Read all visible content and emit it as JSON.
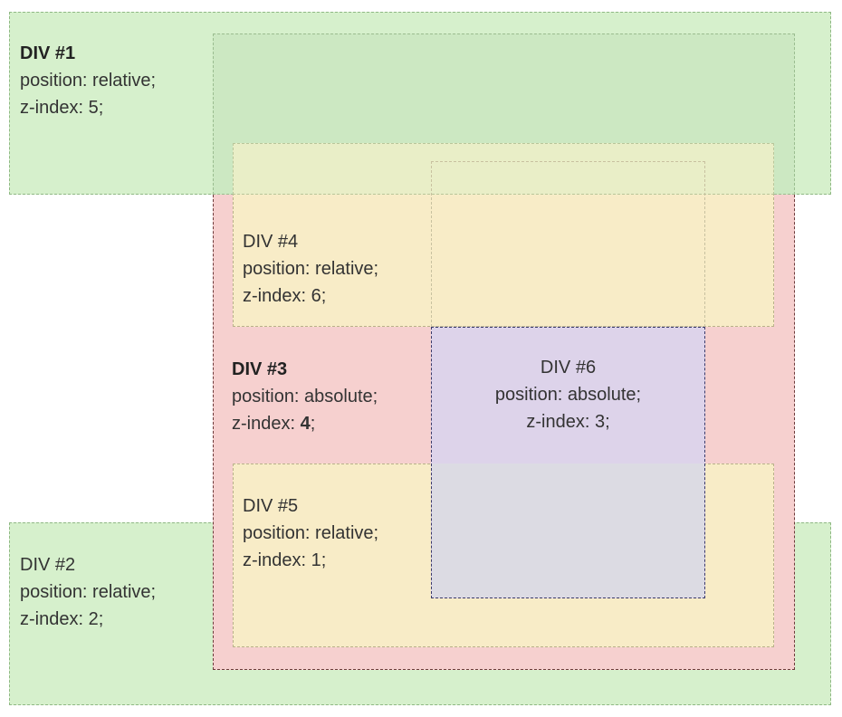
{
  "div1": {
    "title": "DIV #1",
    "position": "position: relative;",
    "zindex": "z-index: 5;"
  },
  "div2": {
    "title": "DIV #2",
    "position": "position: relative;",
    "zindex": "z-index: 2;"
  },
  "div3": {
    "title": "DIV #3",
    "position": "position: absolute;",
    "zindex_prefix": "z-index: ",
    "zindex_value": "4",
    "zindex_suffix": ";"
  },
  "div4": {
    "title": "DIV #4",
    "position": "position: relative;",
    "zindex": "z-index: 6;"
  },
  "div5": {
    "title": "DIV #5",
    "position": "position: relative;",
    "zindex": "z-index: 1;"
  },
  "div6": {
    "title": "DIV #6",
    "position": "position: absolute;",
    "zindex": "z-index: 3;"
  },
  "colors": {
    "green": "#d6f0cc",
    "red": "#f6d0cf",
    "yellow": "#f8ecc7",
    "purple": "#ddd3ea"
  }
}
